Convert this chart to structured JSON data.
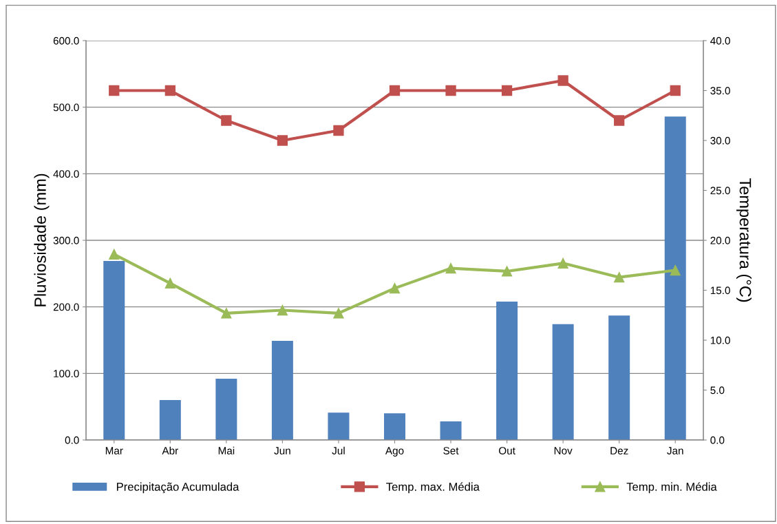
{
  "chart_data": {
    "type": "bar",
    "categories": [
      "Mar",
      "Abr",
      "Mai",
      "Jun",
      "Jul",
      "Ago",
      "Set",
      "Out",
      "Nov",
      "Dez",
      "Jan"
    ],
    "ylabel": "Pluviosidade (mm)",
    "y2label": "Temperatura (°C)",
    "ylim": [
      0,
      600
    ],
    "yticks": [
      {
        "value": 0,
        "label": "0.0"
      },
      {
        "value": 100,
        "label": "100.0"
      },
      {
        "value": 200,
        "label": "200.0"
      },
      {
        "value": 300,
        "label": "300.0"
      },
      {
        "value": 400,
        "label": "400.0"
      },
      {
        "value": 500,
        "label": "500.0"
      },
      {
        "value": 600,
        "label": "600.0"
      }
    ],
    "y2lim": [
      0,
      40
    ],
    "y2ticks": [
      {
        "value": 0,
        "label": "0.0"
      },
      {
        "value": 5,
        "label": "5.0"
      },
      {
        "value": 10,
        "label": "10.0"
      },
      {
        "value": 15,
        "label": "15.0"
      },
      {
        "value": 20,
        "label": "20.0"
      },
      {
        "value": 25,
        "label": "25.0"
      },
      {
        "value": 30,
        "label": "30.0"
      },
      {
        "value": 35,
        "label": "35.0"
      },
      {
        "value": 40,
        "label": "40.0"
      }
    ],
    "grid": "y",
    "legend": "bottom",
    "series": [
      {
        "name": "Precipitação Acumulada",
        "color": "#4f81bd",
        "values": [
          269,
          60,
          92,
          149,
          41,
          40,
          28,
          208,
          174,
          187,
          486
        ]
      },
      {
        "name": "Temp. max. Média",
        "type": "line",
        "axis": "y2",
        "color": "#c0504d",
        "marker": "square",
        "values": [
          35,
          35,
          32,
          30,
          31,
          35,
          35,
          35,
          36,
          32,
          35
        ]
      },
      {
        "name": "Temp. min. Média",
        "type": "line",
        "axis": "y2",
        "color": "#9bbb59",
        "marker": "triangle",
        "values": [
          18.6,
          15.7,
          12.7,
          13.0,
          12.7,
          15.2,
          17.2,
          16.9,
          17.7,
          16.3,
          17.0
        ]
      }
    ]
  }
}
